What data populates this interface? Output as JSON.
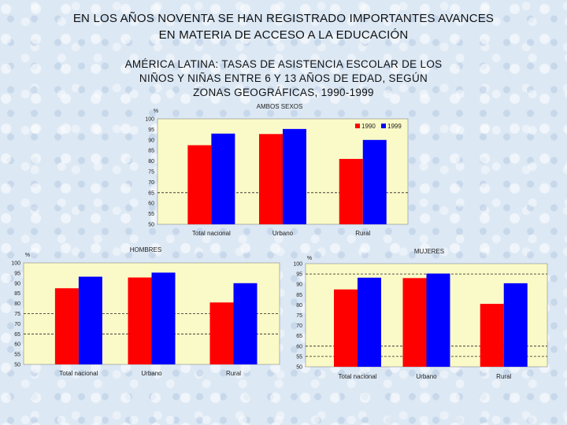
{
  "header": {
    "title_line1": "EN LOS AÑOS NOVENTA SE HAN REGISTRADO IMPORTANTES AVANCES",
    "title_line2": "EN MATERIA DE ACCESO A LA EDUCACIÓN",
    "subtitle_line1": "AMÉRICA LATINA: TASAS DE ASISTENCIA ESCOLAR DE LOS",
    "subtitle_line2": "NIÑOS Y NIÑAS ENTRE 6 Y 13 AÑOS DE EDAD, SEGÚN",
    "subtitle_line3": "ZONAS GEOGRÁFICAS, 1990-1999"
  },
  "colors": {
    "s1990": "#ff0000",
    "s1999": "#0000ff",
    "plot_bg": "#fafac8"
  },
  "chart_data": [
    {
      "id": "ambos",
      "type": "bar",
      "title": "AMBOS SEXOS",
      "ylabel": "%",
      "ylim": [
        50,
        100
      ],
      "yticks": [
        100,
        95,
        90,
        85,
        80,
        75,
        70,
        65,
        60,
        55,
        50
      ],
      "categories": [
        "Total nacional",
        "Urbano",
        "Rural"
      ],
      "series": [
        {
          "name": "1990",
          "values": [
            87.5,
            92.8,
            81
          ]
        },
        {
          "name": "1999",
          "values": [
            93,
            95.2,
            90
          ]
        }
      ],
      "legend": "top-right",
      "reference_lines": [
        65
      ]
    },
    {
      "id": "hombres",
      "type": "bar",
      "title": "HOMBRES",
      "ylabel": "%",
      "ylim": [
        50,
        100
      ],
      "yticks": [
        100,
        95,
        90,
        85,
        80,
        75,
        70,
        65,
        60,
        55,
        50
      ],
      "categories": [
        "Total nacional",
        "Urbano",
        "Rural"
      ],
      "series": [
        {
          "name": "1990",
          "values": [
            87.5,
            92.8,
            80.5
          ]
        },
        {
          "name": "1999",
          "values": [
            93.2,
            95.2,
            90
          ]
        }
      ],
      "reference_lines": [
        75,
        65
      ]
    },
    {
      "id": "mujeres",
      "type": "bar",
      "title": "MUJERES",
      "ylabel": "%",
      "ylim": [
        50,
        100
      ],
      "yticks": [
        100,
        95,
        90,
        85,
        80,
        75,
        70,
        65,
        60,
        55,
        50
      ],
      "categories": [
        "Total nacional",
        "Urbano",
        "Rural"
      ],
      "series": [
        {
          "name": "1990",
          "values": [
            87.5,
            93,
            80.5
          ]
        },
        {
          "name": "1999",
          "values": [
            93.2,
            95.2,
            90.5
          ]
        }
      ],
      "reference_lines": [
        95,
        60,
        55
      ]
    }
  ]
}
